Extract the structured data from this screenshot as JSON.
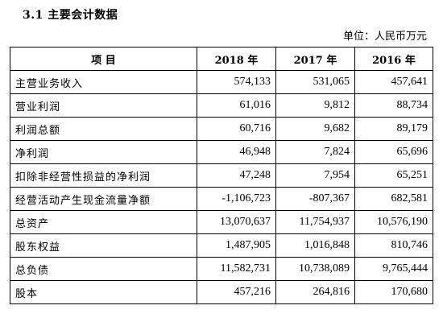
{
  "section": {
    "title": "3.1 主要会计数据"
  },
  "unit_note": "单位：人民币万元",
  "table": {
    "headers": [
      "项 目",
      "2018 年",
      "2017 年",
      "2016 年"
    ],
    "rows": [
      {
        "label": "主营业务收入",
        "values": [
          "574,133",
          "531,065",
          "457,641"
        ]
      },
      {
        "label": "营业利润",
        "values": [
          "61,016",
          "9,812",
          "88,734"
        ]
      },
      {
        "label": "利润总额",
        "values": [
          "60,716",
          "9,682",
          "89,179"
        ]
      },
      {
        "label": "净利润",
        "values": [
          "46,948",
          "7,824",
          "65,696"
        ]
      },
      {
        "label": "扣除非经营性损益的净利润",
        "values": [
          "47,248",
          "7,954",
          "65,251"
        ]
      },
      {
        "label": "经营活动产生现金流量净额",
        "values": [
          "-1,106,723",
          "-807,367",
          "682,581"
        ]
      },
      {
        "label": "总资产",
        "values": [
          "13,070,637",
          "11,754,937",
          "10,576,190"
        ]
      },
      {
        "label": "股东权益",
        "values": [
          "1,487,905",
          "1,016,848",
          "810,746"
        ]
      },
      {
        "label": "总负债",
        "values": [
          "11,582,731",
          "10,738,089",
          "9,765,444"
        ]
      },
      {
        "label": "股本",
        "values": [
          "457,216",
          "264,816",
          "170,680"
        ]
      }
    ]
  }
}
